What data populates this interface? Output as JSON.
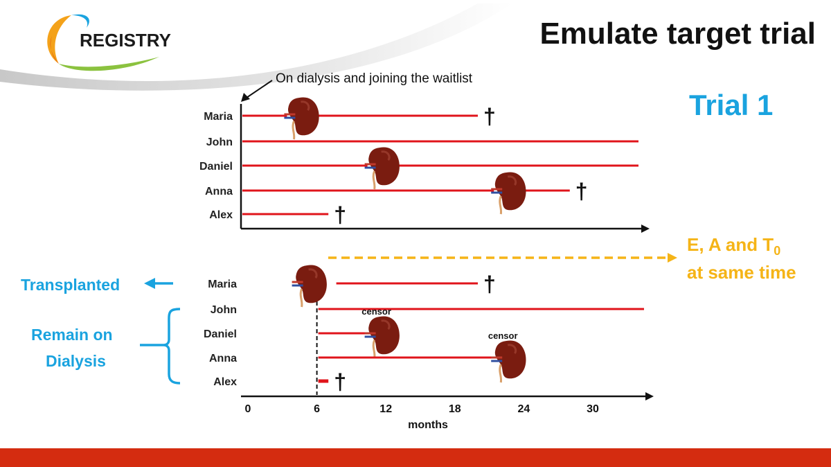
{
  "slide": {
    "title": "Emulate target trial",
    "logo_text": "REGISTRY",
    "trial_label": "Trial 1",
    "note": "On dialysis and joining the waitlist",
    "transplanted_label": "Transplanted",
    "remain_label_line1": "Remain on",
    "remain_label_line2": "Dialysis",
    "alignment_note_line1": "E, A and T",
    "alignment_note_subscript": "0",
    "alignment_note_line2": "at same time",
    "censor_label": "censor",
    "death_symbol": "†",
    "colors": {
      "timeline": "#e0141b",
      "accent_blue": "#1aa3df",
      "accent_yellow": "#f5b417",
      "bottom_bar": "#d42c10",
      "kidney": "#7a1c10"
    }
  },
  "chart_data": {
    "type": "timeline",
    "x_axis": {
      "label": "months",
      "ticks": [
        0,
        6,
        12,
        18,
        24,
        30
      ],
      "range": [
        0,
        33
      ]
    },
    "panels": [
      {
        "name": "observational",
        "patients": [
          {
            "name": "Maria",
            "start": 0,
            "end": 20,
            "transplant": 4,
            "outcome": "death"
          },
          {
            "name": "John",
            "start": 0,
            "end": 33,
            "transplant": null,
            "outcome": "none"
          },
          {
            "name": "Daniel",
            "start": 0,
            "end": 33,
            "transplant": 11,
            "outcome": "none"
          },
          {
            "name": "Anna",
            "start": 0,
            "end": 28,
            "transplant": 22,
            "outcome": "death"
          },
          {
            "name": "Alex",
            "start": 0,
            "end": 7,
            "transplant": null,
            "outcome": "death"
          }
        ]
      },
      {
        "name": "trial",
        "time_zero": 6,
        "patients": [
          {
            "name": "Maria",
            "start": 6,
            "end": 20,
            "transplant": 4,
            "outcome": "death",
            "group": "Transplanted"
          },
          {
            "name": "John",
            "start": 6,
            "end": 33,
            "transplant": null,
            "outcome": "none",
            "group": "Remain on Dialysis"
          },
          {
            "name": "Daniel",
            "start": 6,
            "end": 11,
            "transplant": 11,
            "outcome": "censor",
            "group": "Remain on Dialysis"
          },
          {
            "name": "Anna",
            "start": 6,
            "end": 22,
            "transplant": 22,
            "outcome": "censor",
            "group": "Remain on Dialysis"
          },
          {
            "name": "Alex",
            "start": 6,
            "end": 7,
            "transplant": null,
            "outcome": "death",
            "group": "Remain on Dialysis"
          }
        ]
      }
    ]
  }
}
